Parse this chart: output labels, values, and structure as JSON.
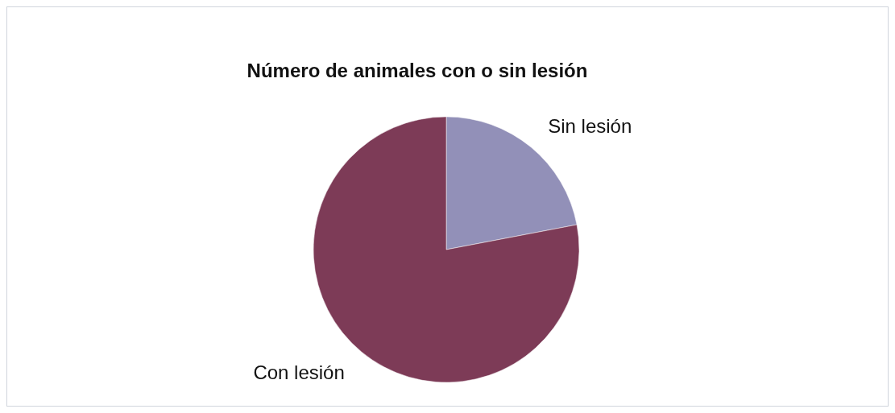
{
  "chart_data": {
    "type": "pie",
    "title": "Número de animales con o sin lesión",
    "categories": [
      "Sin lesión",
      "Con lesión"
    ],
    "values": [
      22,
      78
    ],
    "colors": [
      "#9290b8",
      "#7d3b57"
    ],
    "legend": false
  }
}
